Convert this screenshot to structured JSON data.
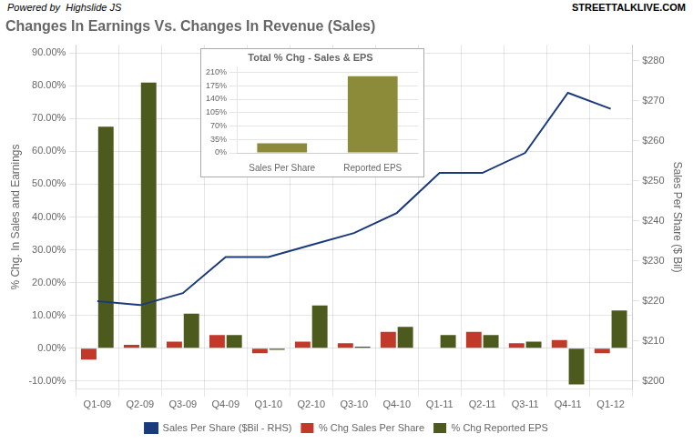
{
  "chart_data": [
    {
      "type": "bar",
      "title": "Changes In Earnings Vs. Changes In Revenue (Sales)",
      "annotations": [
        "Powered by  Highslide JS",
        "STREETTALKLIVE.COM"
      ],
      "ylabel": "% Chg. In Sales and Earnings",
      "y2label": "Sales Per Share ($ Bil)",
      "categories": [
        "Q1-09",
        "Q2-09",
        "Q3-09",
        "Q4-09",
        "Q1-10",
        "Q2-10",
        "Q3-10",
        "Q4-10",
        "Q1-11",
        "Q2-11",
        "Q3-11",
        "Q4-11",
        "Q1-12"
      ],
      "series": [
        {
          "name": "% Chg Sales Per Share",
          "type": "bar",
          "color": "#c0392b",
          "values": [
            -0.035,
            0.01,
            0.02,
            0.04,
            -0.015,
            0.02,
            0.015,
            0.05,
            0,
            0.05,
            0.015,
            0.025,
            -0.015
          ]
        },
        {
          "name": "% Chg Reported EPS",
          "type": "bar",
          "color": "#4d5a1e",
          "values": [
            0.675,
            0.81,
            0.105,
            0.04,
            -0.005,
            0.13,
            0.005,
            0.065,
            0.04,
            0.04,
            0.02,
            -0.11,
            0.115
          ]
        },
        {
          "name": "Sales Per Share ($Bil - RHS)",
          "type": "line",
          "color": "#1a3a7c",
          "axis": "y2",
          "values": [
            220,
            219,
            222,
            231,
            231,
            234,
            237,
            242,
            252,
            252,
            257,
            272,
            268
          ]
        }
      ],
      "ylim": [
        -0.125,
        0.925
      ],
      "yticks": [
        {
          "value": -0.1,
          "label": "-10.00%"
        },
        {
          "value": 0,
          "label": "0.00%"
        },
        {
          "value": 0.1,
          "label": "10.00%"
        },
        {
          "value": 0.2,
          "label": "20.00%"
        },
        {
          "value": 0.3,
          "label": "30.00%"
        },
        {
          "value": 0.4,
          "label": "40.00%"
        },
        {
          "value": 0.5,
          "label": "50.00%"
        },
        {
          "value": 0.6,
          "label": "60.00%"
        },
        {
          "value": 0.7,
          "label": "70.00%"
        },
        {
          "value": 0.8,
          "label": "80.00%"
        },
        {
          "value": 0.9,
          "label": "90.00%"
        }
      ],
      "y2lim": [
        198,
        284
      ],
      "y2ticks": [
        {
          "value": 200,
          "label": "$200"
        },
        {
          "value": 210,
          "label": "$210"
        },
        {
          "value": 220,
          "label": "$220"
        },
        {
          "value": 230,
          "label": "$230"
        },
        {
          "value": 240,
          "label": "$240"
        },
        {
          "value": 250,
          "label": "$250"
        },
        {
          "value": 260,
          "label": "$260"
        },
        {
          "value": 270,
          "label": "$270"
        },
        {
          "value": 280,
          "label": "$280"
        }
      ],
      "grid": true,
      "legend": "bottom"
    },
    {
      "type": "bar",
      "title": "Total % Chg - Sales & EPS",
      "categories": [
        "Sales Per Share",
        "Reported EPS"
      ],
      "values": [
        0.25,
        2
      ],
      "color": "#8b8b3a",
      "ylim": [
        0,
        2.25
      ],
      "yticks": [
        {
          "value": 0,
          "label": "0%"
        },
        {
          "value": 0.35,
          "label": "35%"
        },
        {
          "value": 0.7,
          "label": "70%"
        },
        {
          "value": 1.05,
          "label": "105%"
        },
        {
          "value": 1.4,
          "label": "140%"
        },
        {
          "value": 1.75,
          "label": "175%"
        },
        {
          "value": 2.1,
          "label": "210%"
        }
      ],
      "grid": "y"
    }
  ]
}
